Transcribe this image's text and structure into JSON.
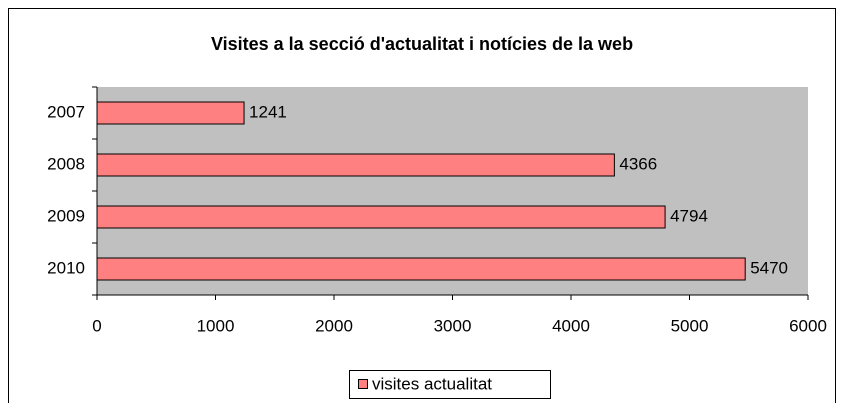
{
  "chart_data": {
    "type": "bar",
    "orientation": "horizontal",
    "title": "Visites a la secció d'actualitat i notícies de la web",
    "categories": [
      "2007",
      "2008",
      "2009",
      "2010"
    ],
    "series": [
      {
        "name": "visites actualitat",
        "color": "#ff8080",
        "values": [
          1241,
          4366,
          4794,
          5470
        ]
      }
    ],
    "xlim": [
      0,
      6000
    ],
    "xticks": [
      0,
      1000,
      2000,
      3000,
      4000,
      5000,
      6000
    ],
    "grid": false,
    "plot_background": "#c0c0c0",
    "legend": "bottom"
  }
}
